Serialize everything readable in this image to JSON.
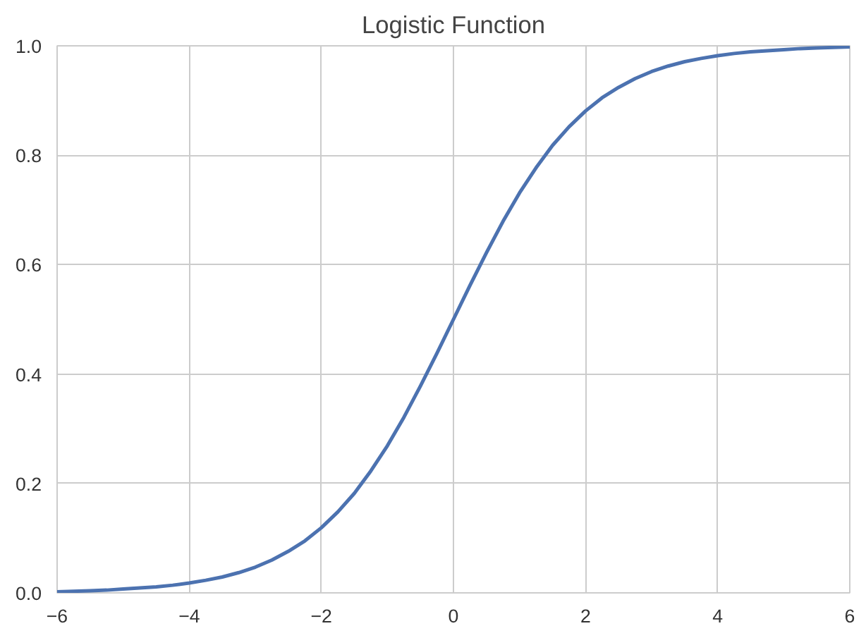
{
  "chart_data": {
    "type": "line",
    "title": "Logistic Function",
    "x": [
      -6,
      -5.75,
      -5.5,
      -5.25,
      -5,
      -4.75,
      -4.5,
      -4.25,
      -4,
      -3.75,
      -3.5,
      -3.25,
      -3,
      -2.75,
      -2.5,
      -2.25,
      -2,
      -1.75,
      -1.5,
      -1.25,
      -1,
      -0.75,
      -0.5,
      -0.25,
      0,
      0.25,
      0.5,
      0.75,
      1,
      1.25,
      1.5,
      1.75,
      2,
      2.25,
      2.5,
      2.75,
      3,
      3.25,
      3.5,
      3.75,
      4,
      4.25,
      4.5,
      4.75,
      5,
      5.25,
      5.5,
      5.75,
      6
    ],
    "series": [
      {
        "color": "#4c72b0",
        "values": [
          0.002,
          0.003,
          0.004,
          0.005,
          0.007,
          0.009,
          0.011,
          0.014,
          0.018,
          0.023,
          0.029,
          0.037,
          0.047,
          0.06,
          0.076,
          0.095,
          0.119,
          0.148,
          0.182,
          0.223,
          0.269,
          0.321,
          0.378,
          0.438,
          0.5,
          0.562,
          0.622,
          0.679,
          0.731,
          0.777,
          0.818,
          0.852,
          0.881,
          0.905,
          0.924,
          0.94,
          0.953,
          0.963,
          0.971,
          0.977,
          0.982,
          0.986,
          0.989,
          0.991,
          0.993,
          0.995,
          0.996,
          0.997,
          0.998
        ]
      }
    ],
    "xlim": [
      -6,
      6
    ],
    "ylim": [
      0,
      1
    ],
    "xticks": [
      -6,
      -4,
      -2,
      0,
      2,
      4,
      6
    ],
    "yticks": [
      {
        "value": 0,
        "label": "0.0"
      },
      {
        "value": 0.2,
        "label": "0.2"
      },
      {
        "value": 0.4,
        "label": "0.4"
      },
      {
        "value": 0.6,
        "label": "0.6"
      },
      {
        "value": 0.8,
        "label": "0.8"
      },
      {
        "value": 1,
        "label": "1.0"
      }
    ],
    "grid": true,
    "marker": "none",
    "line_style": "solid"
  }
}
